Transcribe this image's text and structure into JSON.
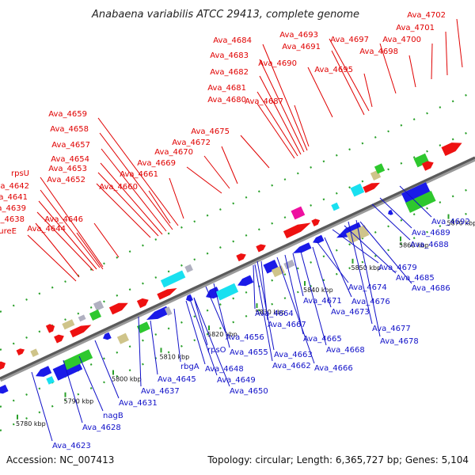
{
  "title": "Anabaena variabilis ATCC 29413, complete genome",
  "footer": {
    "accession": "Accession: NC_007413",
    "summary": "Topology: circular; Length: 6,365,727 bp; Genes: 5,104"
  },
  "colors": {
    "top_strand_label": "#e00000",
    "bottom_strand_label": "#1010c8"
  },
  "ticks": [
    "5780 kbp",
    "5790 kbp",
    "5800 kbp",
    "5810 kbp",
    "5820 kbp",
    "5830 kbp",
    "5840 kbp",
    "5850 kbp",
    "5860 kbp",
    "5870 kbp"
  ],
  "top_labels": [
    "Ava_4702",
    "Ava_4701",
    "Ava_4700",
    "Ava_4698",
    "Ava_4697",
    "Ava_4693",
    "Ava_4691",
    "Ava_4695",
    "Ava_4690",
    "Ava_4684",
    "Ava_4683",
    "Ava_4682",
    "Ava_4681",
    "Ava_4680",
    "Ava_4687",
    "Ava_4659",
    "Ava_4658",
    "Ava_4657",
    "Ava_4654",
    "Ava_4653",
    "Ava_4652",
    "Ava_4675",
    "Ava_4672",
    "Ava_4670",
    "Ava_4669",
    "Ava_4661",
    "Ava_4660",
    "rpsU",
    "Ava_4642",
    "Ava_4641",
    "Ava_4639",
    "Ava_4638",
    "ureE",
    "Ava_4646",
    "Ava_4644"
  ],
  "bottom_labels": [
    "Ava_4692",
    "Ava_4689",
    "Ava_4688",
    "Ava_4679",
    "Ava_4685",
    "Ava_4686",
    "Ava_4674",
    "Ava_4676",
    "Ava_4671",
    "Ava_4673",
    "Ava_4677",
    "Ava_4678",
    "Ava_4667",
    "Ava_4664",
    "Ava_4665",
    "Ava_4668",
    "Ava_4656",
    "Ava_4655",
    "Ava_4663",
    "Ava_4662",
    "Ava_4666",
    "rpsO",
    "rbgA",
    "Ava_4648",
    "Ava_4649",
    "Ava_4650",
    "Ava_4645",
    "Ava_4637",
    "Ava_4631",
    "nagB",
    "Ava_4628",
    "Ava_4623"
  ]
}
